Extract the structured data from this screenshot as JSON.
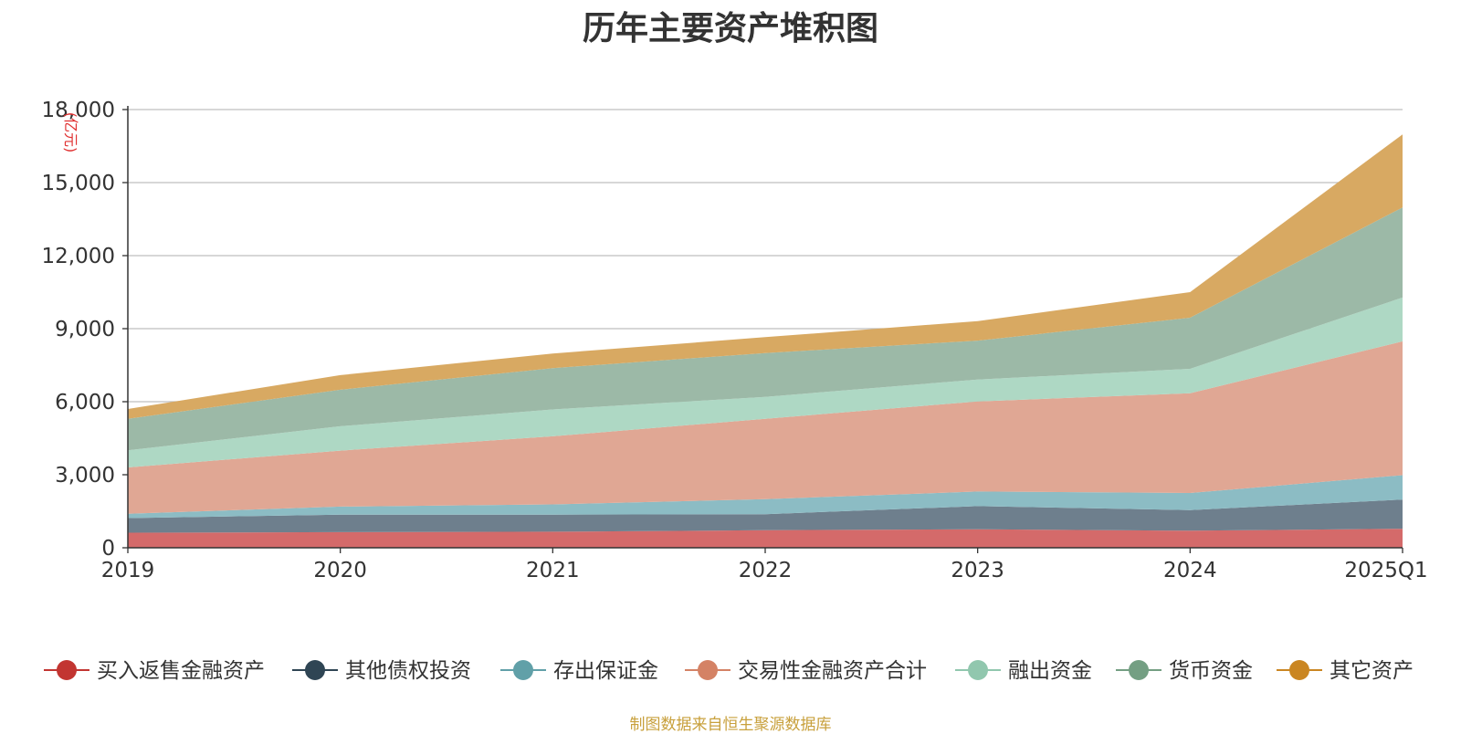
{
  "chart_data": {
    "type": "area",
    "stacked": true,
    "title": "历年主要资产堆积图",
    "unit": "(亿元)",
    "x": [
      "2019",
      "2020",
      "2021",
      "2022",
      "2023",
      "2024",
      "2025Q1"
    ],
    "ylim": [
      0,
      18000
    ],
    "yticks": [
      0,
      3000,
      6000,
      9000,
      12000,
      15000,
      18000
    ],
    "ytick_labels": [
      "0",
      "3,000",
      "6,000",
      "9,000",
      "12,000",
      "15,000",
      "18,000"
    ],
    "grid": true,
    "legend_position": "bottom",
    "series": [
      {
        "name": "买入返售金融资产",
        "color": "#d46a6a",
        "legend_color": "#c23531",
        "values": [
          620,
          640,
          660,
          720,
          760,
          700,
          780
        ]
      },
      {
        "name": "其他债权投资",
        "color": "#6e7f8d",
        "legend_color": "#2f4554",
        "values": [
          600,
          720,
          700,
          660,
          950,
          850,
          1200
        ]
      },
      {
        "name": "存出保证金",
        "color": "#8cbcc4",
        "legend_color": "#61a0a8",
        "values": [
          180,
          330,
          420,
          620,
          600,
          700,
          1000
        ]
      },
      {
        "name": "交易性金融资产合计",
        "color": "#e0a794",
        "legend_color": "#d48265",
        "values": [
          1900,
          2300,
          2800,
          3300,
          3700,
          4100,
          5500
        ]
      },
      {
        "name": "融出资金",
        "color": "#aed8c4",
        "legend_color": "#91c7ae",
        "values": [
          700,
          1000,
          1100,
          900,
          900,
          1000,
          1800
        ]
      },
      {
        "name": "货币资金",
        "color": "#9cb9a7",
        "legend_color": "#749f83",
        "values": [
          1300,
          1500,
          1700,
          1800,
          1600,
          2100,
          3700
        ]
      },
      {
        "name": "其它资产",
        "color": "#d8a962",
        "legend_color": "#ca8622",
        "values": [
          400,
          600,
          600,
          650,
          800,
          1050,
          3000
        ]
      }
    ]
  },
  "source_text": "制图数据来自恒生聚源数据库"
}
